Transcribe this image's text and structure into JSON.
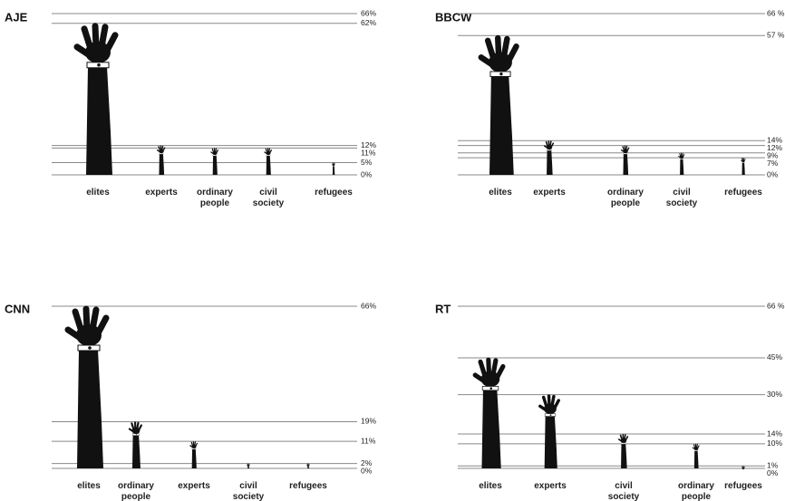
{
  "chart_data": [
    {
      "type": "bar",
      "title": "AJE",
      "categories": [
        "elites",
        "experts",
        "ordinary people",
        "civil society",
        "refugees"
      ],
      "values": [
        62,
        12,
        11,
        11,
        5
      ],
      "color": "#111111",
      "ylim": [
        0,
        66
      ],
      "yticks": [
        {
          "value": 66,
          "label": "66%"
        },
        {
          "value": 62,
          "label": "62%"
        },
        {
          "value": 12,
          "label": "12%"
        },
        {
          "value": 11,
          "label": "11%"
        },
        {
          "value": 5,
          "label": "5%"
        },
        {
          "value": 0,
          "label": "0%"
        }
      ],
      "grid": true
    },
    {
      "type": "bar",
      "title": "BBCW",
      "categories": [
        "elites",
        "experts",
        "ordinary people",
        "civil society",
        "refugees"
      ],
      "values": [
        57,
        14,
        12,
        9,
        7
      ],
      "color": "#111111",
      "ylim": [
        0,
        66
      ],
      "yticks": [
        {
          "value": 66,
          "label": "66 %"
        },
        {
          "value": 57,
          "label": "57 %"
        },
        {
          "value": 14,
          "label": "14%"
        },
        {
          "value": 12,
          "label": "12%"
        },
        {
          "value": 9,
          "label": "9%"
        },
        {
          "value": 7,
          "label": "7%"
        },
        {
          "value": 0,
          "label": "0%"
        }
      ],
      "grid": true
    },
    {
      "type": "bar",
      "title": "CNN",
      "categories": [
        "elites",
        "ordinary people",
        "experts",
        "civil society",
        "refugees"
      ],
      "values": [
        66,
        19,
        11,
        2,
        2
      ],
      "color": "#111111",
      "ylim": [
        0,
        66
      ],
      "yticks": [
        {
          "value": 66,
          "label": "66%"
        },
        {
          "value": 19,
          "label": "19%"
        },
        {
          "value": 11,
          "label": "11%"
        },
        {
          "value": 2,
          "label": "2%"
        },
        {
          "value": 0,
          "label": "0%"
        }
      ],
      "grid": true
    },
    {
      "type": "bar",
      "title": "RT",
      "categories": [
        "elites",
        "experts",
        "civil society",
        "ordinary people",
        "refugees"
      ],
      "values": [
        45,
        30,
        14,
        10,
        1
      ],
      "color": "#111111",
      "ylim": [
        0,
        66
      ],
      "yticks": [
        {
          "value": 66,
          "label": "66 %"
        },
        {
          "value": 45,
          "label": "45%"
        },
        {
          "value": 30,
          "label": "30%"
        },
        {
          "value": 14,
          "label": "14%"
        },
        {
          "value": 10,
          "label": "10%"
        },
        {
          "value": 1,
          "label": "1%"
        },
        {
          "value": 0,
          "label": "0%"
        }
      ],
      "grid": true
    }
  ]
}
